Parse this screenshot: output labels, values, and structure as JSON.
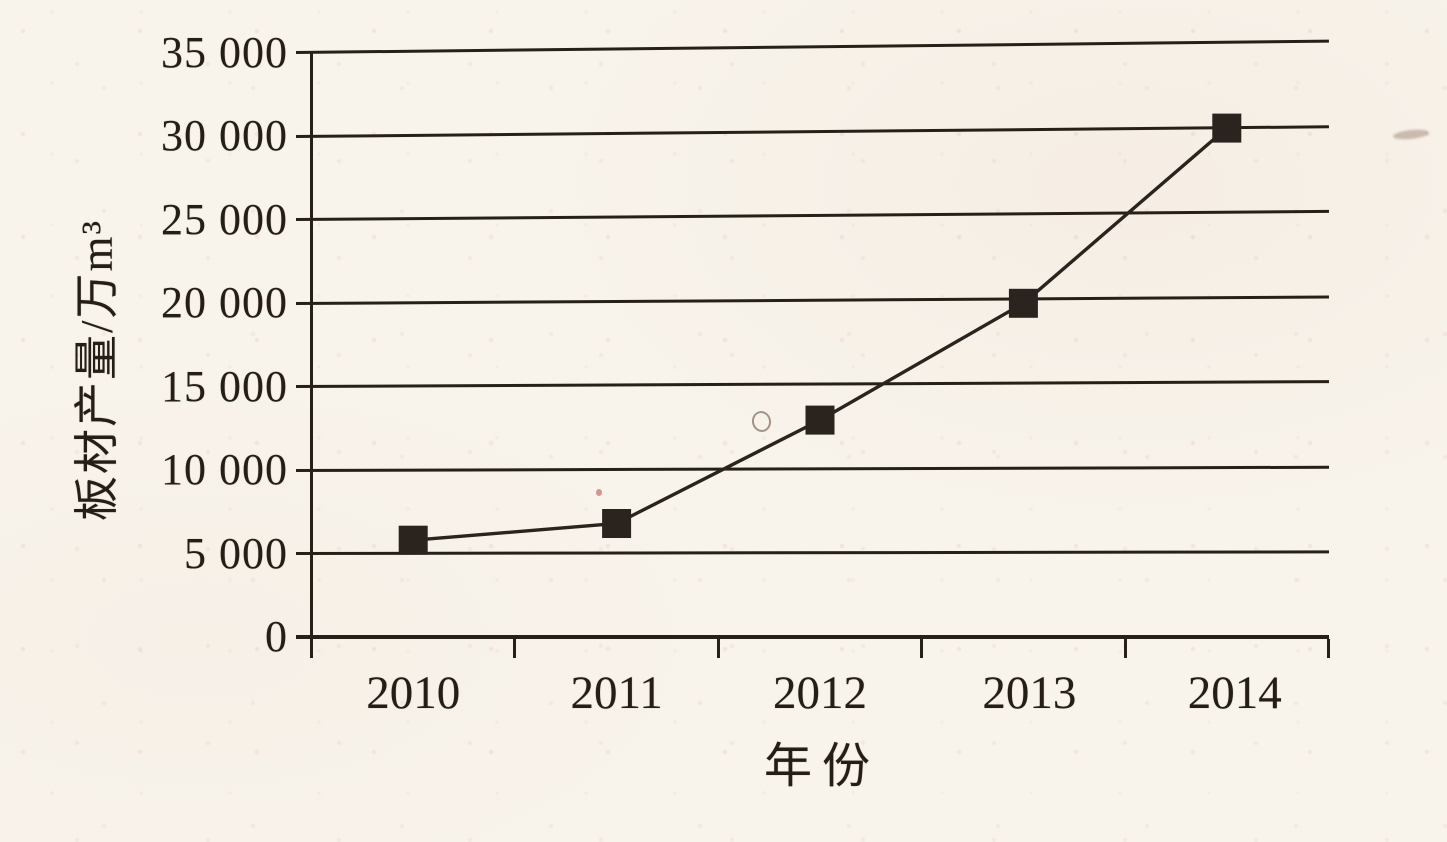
{
  "page": {
    "kind": "scanned textbook line chart",
    "paper_color": "#f8f4ec",
    "ink_color": "#262019"
  },
  "chart_data": {
    "type": "line",
    "title": "",
    "xlabel": "年份",
    "ylabel": "板材产量/万m³",
    "x": [
      2010,
      2011,
      2012,
      2013,
      2014
    ],
    "x_labels": [
      "2010",
      "2011",
      "2012",
      "2013",
      "2014"
    ],
    "series": [
      {
        "name": "板材产量",
        "values": [
          5800,
          6800,
          13000,
          20000,
          30500
        ]
      }
    ],
    "ylim": [
      0,
      35000
    ],
    "yticks": [
      0,
      5000,
      10000,
      15000,
      20000,
      25000,
      30000,
      35000
    ],
    "ytick_labels": [
      "0",
      "5 000",
      "10 000",
      "15 000",
      "20 000",
      "25 000",
      "30 000",
      "35 000"
    ],
    "grid": "horizontal",
    "legend": "none",
    "marker": "filled-square",
    "line_color": "#2b241e",
    "marker_color": "#2b241e"
  }
}
